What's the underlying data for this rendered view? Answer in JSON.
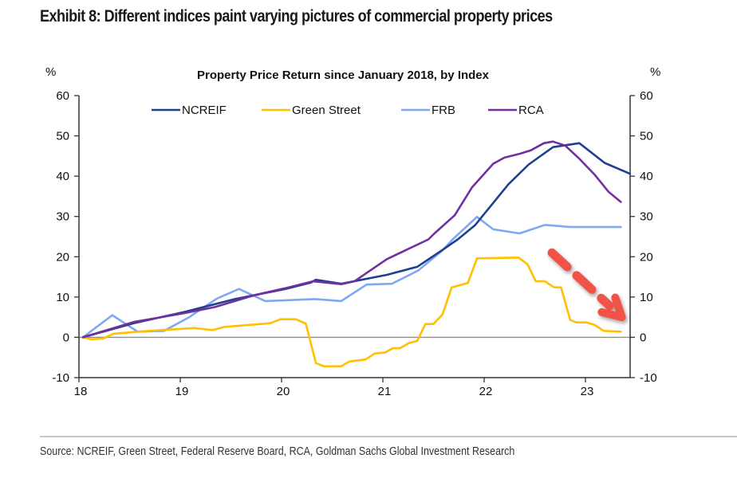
{
  "exhibit": {
    "title": "Exhibit 8: Different indices paint varying pictures of commercial property prices",
    "source": "Source: NCREIF, Green Street, Federal Reserve Board, RCA, Goldman Sachs Global Investment Research"
  },
  "chart_data": {
    "type": "line",
    "title": "Property Price Return since January 2018, by Index",
    "xlabel": "",
    "ylabel": "%",
    "ylabel_right": "%",
    "xlim": [
      0,
      5.55
    ],
    "ylim": [
      -10,
      60
    ],
    "x_tick_values": [
      0,
      1,
      2,
      3,
      4,
      5
    ],
    "x_tick_labels": [
      "18",
      "19",
      "20",
      "21",
      "22",
      "23"
    ],
    "y_ticks": [
      -10,
      0,
      10,
      20,
      30,
      40,
      50,
      60
    ],
    "grid": false,
    "zero_line": true,
    "legend_position": "top-center",
    "x_units": "years since January 2018",
    "annotation": {
      "type": "arrow",
      "style": "dashed",
      "color": "#f2524a",
      "direction": "down-right",
      "from": [
        4.63,
        21
      ],
      "to": [
        5.32,
        5
      ]
    },
    "series": [
      {
        "name": "NCREIF",
        "color": "#1f3f8f",
        "points": [
          [
            0,
            0
          ],
          [
            0.5,
            3.5
          ],
          [
            1.0,
            6.3
          ],
          [
            1.5,
            9.5
          ],
          [
            2.0,
            12.0
          ],
          [
            2.25,
            13.6
          ],
          [
            2.3,
            14.3
          ],
          [
            2.55,
            13.3
          ],
          [
            3.0,
            15.5
          ],
          [
            3.3,
            17.5
          ],
          [
            3.55,
            21.7
          ],
          [
            3.7,
            24.3
          ],
          [
            3.87,
            27.8
          ],
          [
            4.2,
            38.0
          ],
          [
            4.4,
            42.9
          ],
          [
            4.64,
            47.2
          ],
          [
            4.9,
            48.2
          ],
          [
            5.15,
            43.3
          ],
          [
            5.4,
            40.6
          ]
        ]
      },
      {
        "name": "Green Street",
        "color": "#ffc000",
        "points": [
          [
            0,
            0
          ],
          [
            0.08,
            -0.5
          ],
          [
            0.2,
            -0.3
          ],
          [
            0.3,
            0.9
          ],
          [
            0.6,
            1.5
          ],
          [
            0.9,
            2.0
          ],
          [
            1.1,
            2.3
          ],
          [
            1.28,
            1.8
          ],
          [
            1.4,
            2.6
          ],
          [
            1.6,
            3.0
          ],
          [
            1.85,
            3.5
          ],
          [
            1.95,
            4.5
          ],
          [
            2.1,
            4.5
          ],
          [
            2.2,
            3.4
          ],
          [
            2.3,
            -6.4
          ],
          [
            2.38,
            -7.2
          ],
          [
            2.55,
            -7.2
          ],
          [
            2.63,
            -6.0
          ],
          [
            2.79,
            -5.5
          ],
          [
            2.88,
            -4.0
          ],
          [
            2.98,
            -3.8
          ],
          [
            3.06,
            -2.7
          ],
          [
            3.13,
            -2.7
          ],
          [
            3.22,
            -1.4
          ],
          [
            3.3,
            -0.9
          ],
          [
            3.38,
            3.3
          ],
          [
            3.46,
            3.3
          ],
          [
            3.55,
            5.7
          ],
          [
            3.64,
            12.4
          ],
          [
            3.8,
            13.5
          ],
          [
            3.89,
            19.6
          ],
          [
            4.3,
            19.8
          ],
          [
            4.39,
            18.1
          ],
          [
            4.47,
            13.9
          ],
          [
            4.56,
            13.9
          ],
          [
            4.65,
            12.4
          ],
          [
            4.72,
            12.4
          ],
          [
            4.81,
            4.3
          ],
          [
            4.87,
            3.7
          ],
          [
            4.97,
            3.7
          ],
          [
            5.05,
            3.1
          ],
          [
            5.14,
            1.6
          ],
          [
            5.31,
            1.4
          ]
        ]
      },
      {
        "name": "FRB",
        "color": "#7fa8f0",
        "points": [
          [
            0,
            0
          ],
          [
            0.29,
            5.5
          ],
          [
            0.54,
            1.4
          ],
          [
            0.8,
            1.6
          ],
          [
            1.05,
            5.0
          ],
          [
            1.32,
            9.6
          ],
          [
            1.54,
            12.0
          ],
          [
            1.8,
            9.0
          ],
          [
            2.0,
            9.2
          ],
          [
            2.29,
            9.5
          ],
          [
            2.55,
            9.0
          ],
          [
            2.8,
            13.1
          ],
          [
            3.05,
            13.3
          ],
          [
            3.31,
            16.6
          ],
          [
            3.55,
            21.6
          ],
          [
            3.65,
            24.3
          ],
          [
            3.89,
            29.9
          ],
          [
            4.05,
            26.8
          ],
          [
            4.31,
            25.8
          ],
          [
            4.56,
            27.9
          ],
          [
            4.81,
            27.4
          ],
          [
            5.31,
            27.4
          ]
        ]
      },
      {
        "name": "RCA",
        "color": "#7030a0",
        "points": [
          [
            0,
            0
          ],
          [
            0.5,
            3.8
          ],
          [
            1.0,
            6.0
          ],
          [
            1.3,
            7.5
          ],
          [
            1.7,
            10.5
          ],
          [
            2.0,
            12.2
          ],
          [
            2.27,
            13.9
          ],
          [
            2.55,
            13.2
          ],
          [
            2.68,
            13.9
          ],
          [
            3.0,
            19.4
          ],
          [
            3.41,
            24.3
          ],
          [
            3.47,
            25.8
          ],
          [
            3.67,
            30.3
          ],
          [
            3.84,
            37.2
          ],
          [
            4.05,
            43.1
          ],
          [
            4.16,
            44.6
          ],
          [
            4.32,
            45.6
          ],
          [
            4.42,
            46.4
          ],
          [
            4.55,
            48.2
          ],
          [
            4.64,
            48.6
          ],
          [
            4.76,
            47.6
          ],
          [
            4.89,
            44.6
          ],
          [
            5.05,
            40.4
          ],
          [
            5.19,
            36.1
          ],
          [
            5.31,
            33.6
          ]
        ]
      }
    ]
  }
}
